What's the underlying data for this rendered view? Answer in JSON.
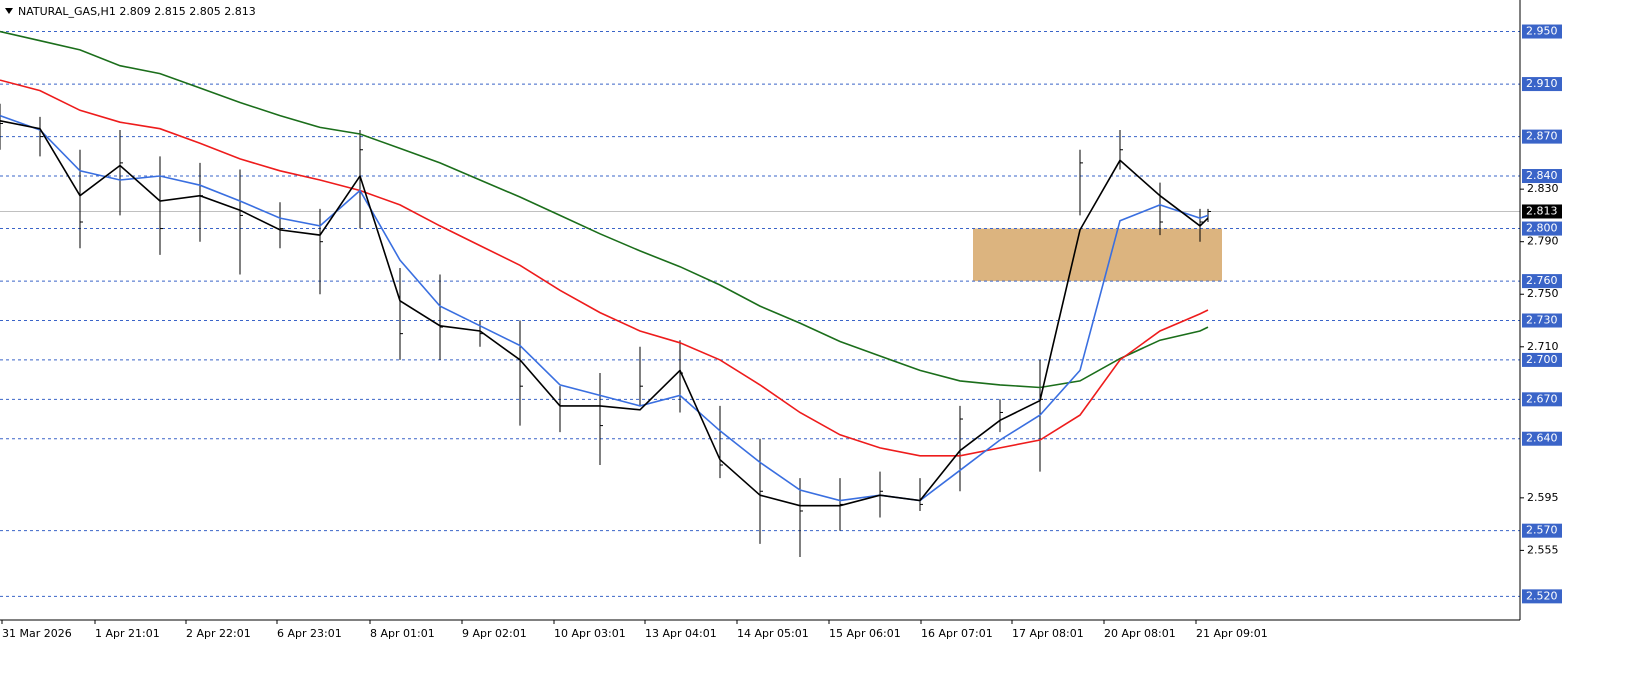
{
  "chart_data": {
    "type": "line",
    "title": "NATURAL_GAS,H1  2.809 2.815 2.805 2.813",
    "x": [
      0,
      10,
      20,
      30,
      40,
      50,
      60,
      70,
      80,
      90,
      100,
      110,
      120,
      130,
      140,
      150,
      160,
      170,
      180,
      190,
      200,
      210,
      220,
      230,
      240,
      250,
      260,
      270,
      280,
      290,
      300,
      302
    ],
    "xlim": [
      0,
      380
    ],
    "xticks": [
      {
        "value": 0.5,
        "label": "31 Mar 2026"
      },
      {
        "value": 23.75,
        "label": "1 Apr 21:01"
      },
      {
        "value": 46.5,
        "label": "2 Apr 22:01"
      },
      {
        "value": 69.25,
        "label": "6 Apr 23:01"
      },
      {
        "value": 92.5,
        "label": "8 Apr 01:01"
      },
      {
        "value": 115.5,
        "label": "9 Apr 02:01"
      },
      {
        "value": 138.5,
        "label": "10 Apr 03:01"
      },
      {
        "value": 161.25,
        "label": "13 Apr 04:01"
      },
      {
        "value": 184.25,
        "label": "14 Apr 05:01"
      },
      {
        "value": 207.25,
        "label": "15 Apr 06:01"
      },
      {
        "value": 230.25,
        "label": "16 Apr 07:01"
      },
      {
        "value": 253,
        "label": "17 Apr 08:01"
      },
      {
        "value": 276,
        "label": "20 Apr 08:01"
      },
      {
        "value": 299,
        "label": "21 Apr 09:01"
      }
    ],
    "ylim": [
      2.502,
      2.974
    ],
    "yticks": [
      {
        "value": 2.83,
        "label": "2.830"
      },
      {
        "value": 2.79,
        "label": "2.790"
      },
      {
        "value": 2.75,
        "label": "2.750"
      },
      {
        "value": 2.71,
        "label": "2.710"
      },
      {
        "value": 2.595,
        "label": "2.595"
      },
      {
        "value": 2.555,
        "label": "2.555"
      }
    ],
    "levels": [
      {
        "value": 2.95,
        "label": "2.950"
      },
      {
        "value": 2.91,
        "label": "2.910"
      },
      {
        "value": 2.87,
        "label": "2.870"
      },
      {
        "value": 2.84,
        "label": "2.840"
      },
      {
        "value": 2.8,
        "label": "2.800"
      },
      {
        "value": 2.76,
        "label": "2.760"
      },
      {
        "value": 2.73,
        "label": "2.730"
      },
      {
        "value": 2.7,
        "label": "2.700"
      },
      {
        "value": 2.67,
        "label": "2.670"
      },
      {
        "value": 2.64,
        "label": "2.640"
      },
      {
        "value": 2.57,
        "label": "2.570"
      },
      {
        "value": 2.52,
        "label": "2.520"
      }
    ],
    "level_color": "#3a64c8",
    "current_price": 2.813,
    "zone": {
      "x": [
        243.25,
        305.5
      ],
      "y": [
        2.76,
        2.8
      ],
      "color": "#dcb47f"
    },
    "candle_color": "#000000",
    "high": [
      2.895,
      2.885,
      2.86,
      2.875,
      2.855,
      2.85,
      2.845,
      2.82,
      2.815,
      2.875,
      2.77,
      2.765,
      2.73,
      2.73,
      2.68,
      2.69,
      2.71,
      2.715,
      2.665,
      2.64,
      2.61,
      2.61,
      2.615,
      2.61,
      2.665,
      2.67,
      2.7,
      2.86,
      2.875,
      2.835,
      2.815,
      2.815
    ],
    "low": [
      2.86,
      2.855,
      2.785,
      2.81,
      2.78,
      2.79,
      2.765,
      2.785,
      2.75,
      2.8,
      2.7,
      2.7,
      2.71,
      2.65,
      2.645,
      2.62,
      2.665,
      2.66,
      2.61,
      2.56,
      2.55,
      2.57,
      2.58,
      2.585,
      2.6,
      2.645,
      2.615,
      2.81,
      2.845,
      2.795,
      2.79,
      2.805
    ],
    "close": [
      2.88,
      2.87,
      2.805,
      2.85,
      2.8,
      2.825,
      2.81,
      2.8,
      2.79,
      2.86,
      2.72,
      2.725,
      2.72,
      2.68,
      2.665,
      2.65,
      2.68,
      2.69,
      2.62,
      2.6,
      2.585,
      2.59,
      2.6,
      2.59,
      2.655,
      2.66,
      2.67,
      2.85,
      2.86,
      2.805,
      2.805,
      2.813
    ],
    "series": [
      {
        "color": "#1b6e1b",
        "values": [
          2.95,
          2.943,
          2.936,
          2.924,
          2.918,
          2.907,
          2.896,
          2.886,
          2.877,
          2.872,
          2.861,
          2.85,
          2.837,
          2.824,
          2.81,
          2.796,
          2.783,
          2.771,
          2.757,
          2.741,
          2.728,
          2.714,
          2.703,
          2.692,
          2.684,
          2.681,
          2.679,
          2.684,
          2.701,
          2.715,
          2.722,
          2.725
        ]
      },
      {
        "color": "#ee1c1c",
        "values": [
          2.913,
          2.905,
          2.89,
          2.881,
          2.876,
          2.865,
          2.853,
          2.844,
          2.837,
          2.829,
          2.818,
          2.802,
          2.787,
          2.772,
          2.753,
          2.736,
          2.722,
          2.713,
          2.7,
          2.681,
          2.66,
          2.643,
          2.633,
          2.627,
          2.627,
          2.633,
          2.639,
          2.658,
          2.7,
          2.722,
          2.735,
          2.738
        ]
      },
      {
        "color": "#3a6fe0",
        "values": [
          2.886,
          2.875,
          2.844,
          2.837,
          2.84,
          2.833,
          2.821,
          2.808,
          2.802,
          2.829,
          2.776,
          2.741,
          2.726,
          2.711,
          2.681,
          2.673,
          2.665,
          2.673,
          2.646,
          2.622,
          2.601,
          2.593,
          2.597,
          2.593,
          2.616,
          2.639,
          2.658,
          2.692,
          2.806,
          2.818,
          2.808,
          2.81
        ]
      },
      {
        "color": "#000000",
        "values": [
          2.882,
          2.876,
          2.825,
          2.848,
          2.821,
          2.825,
          2.814,
          2.799,
          2.795,
          2.84,
          2.745,
          2.726,
          2.722,
          2.7,
          2.665,
          2.665,
          2.662,
          2.692,
          2.624,
          2.597,
          2.589,
          2.589,
          2.597,
          2.593,
          2.631,
          2.654,
          2.669,
          2.799,
          2.852,
          2.825,
          2.802,
          2.808
        ]
      }
    ]
  }
}
